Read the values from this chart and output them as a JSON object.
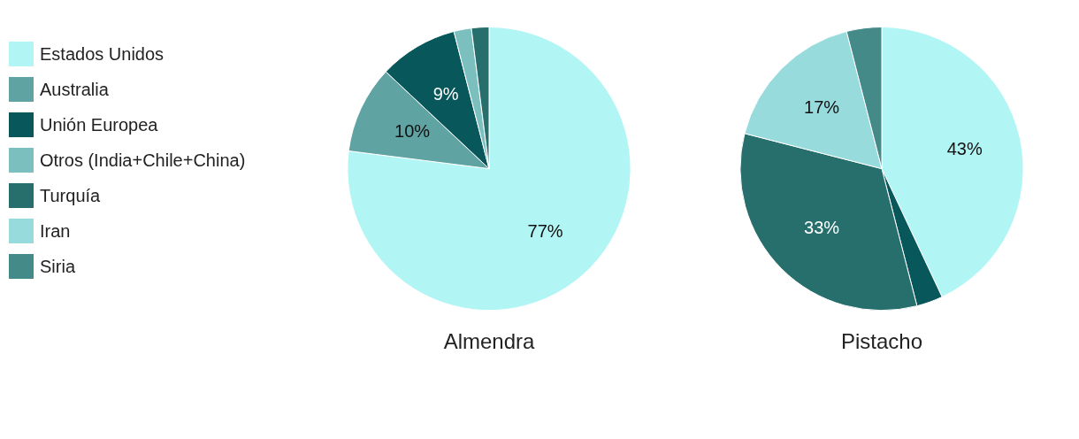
{
  "chart_data": [
    {
      "type": "pie",
      "title": "Almendra",
      "categories": [
        "Estados Unidos",
        "Australia",
        "Unión Europea",
        "Otros (India+Chile+China)",
        "Turquía"
      ],
      "values": [
        77,
        10,
        9,
        2,
        2
      ],
      "colors": [
        "#b2f5f5",
        "#5fa3a3",
        "#07575b",
        "#7bbfbf",
        "#276f6d"
      ],
      "value_labels": [
        "77%",
        "10%",
        "9%",
        null,
        null
      ],
      "legend": "left"
    },
    {
      "type": "pie",
      "title": "Pistacho",
      "categories": [
        null,
        null,
        null,
        "Iran",
        "Siria"
      ],
      "values": [
        43,
        3,
        33,
        17,
        4
      ],
      "colors": [
        "#b2f5f5",
        "#07575b",
        "#276f6d",
        "#97dbdc",
        "#438a89"
      ],
      "value_labels": [
        "43%",
        null,
        "33%",
        "17%",
        null
      ],
      "legend": "left"
    }
  ]
}
